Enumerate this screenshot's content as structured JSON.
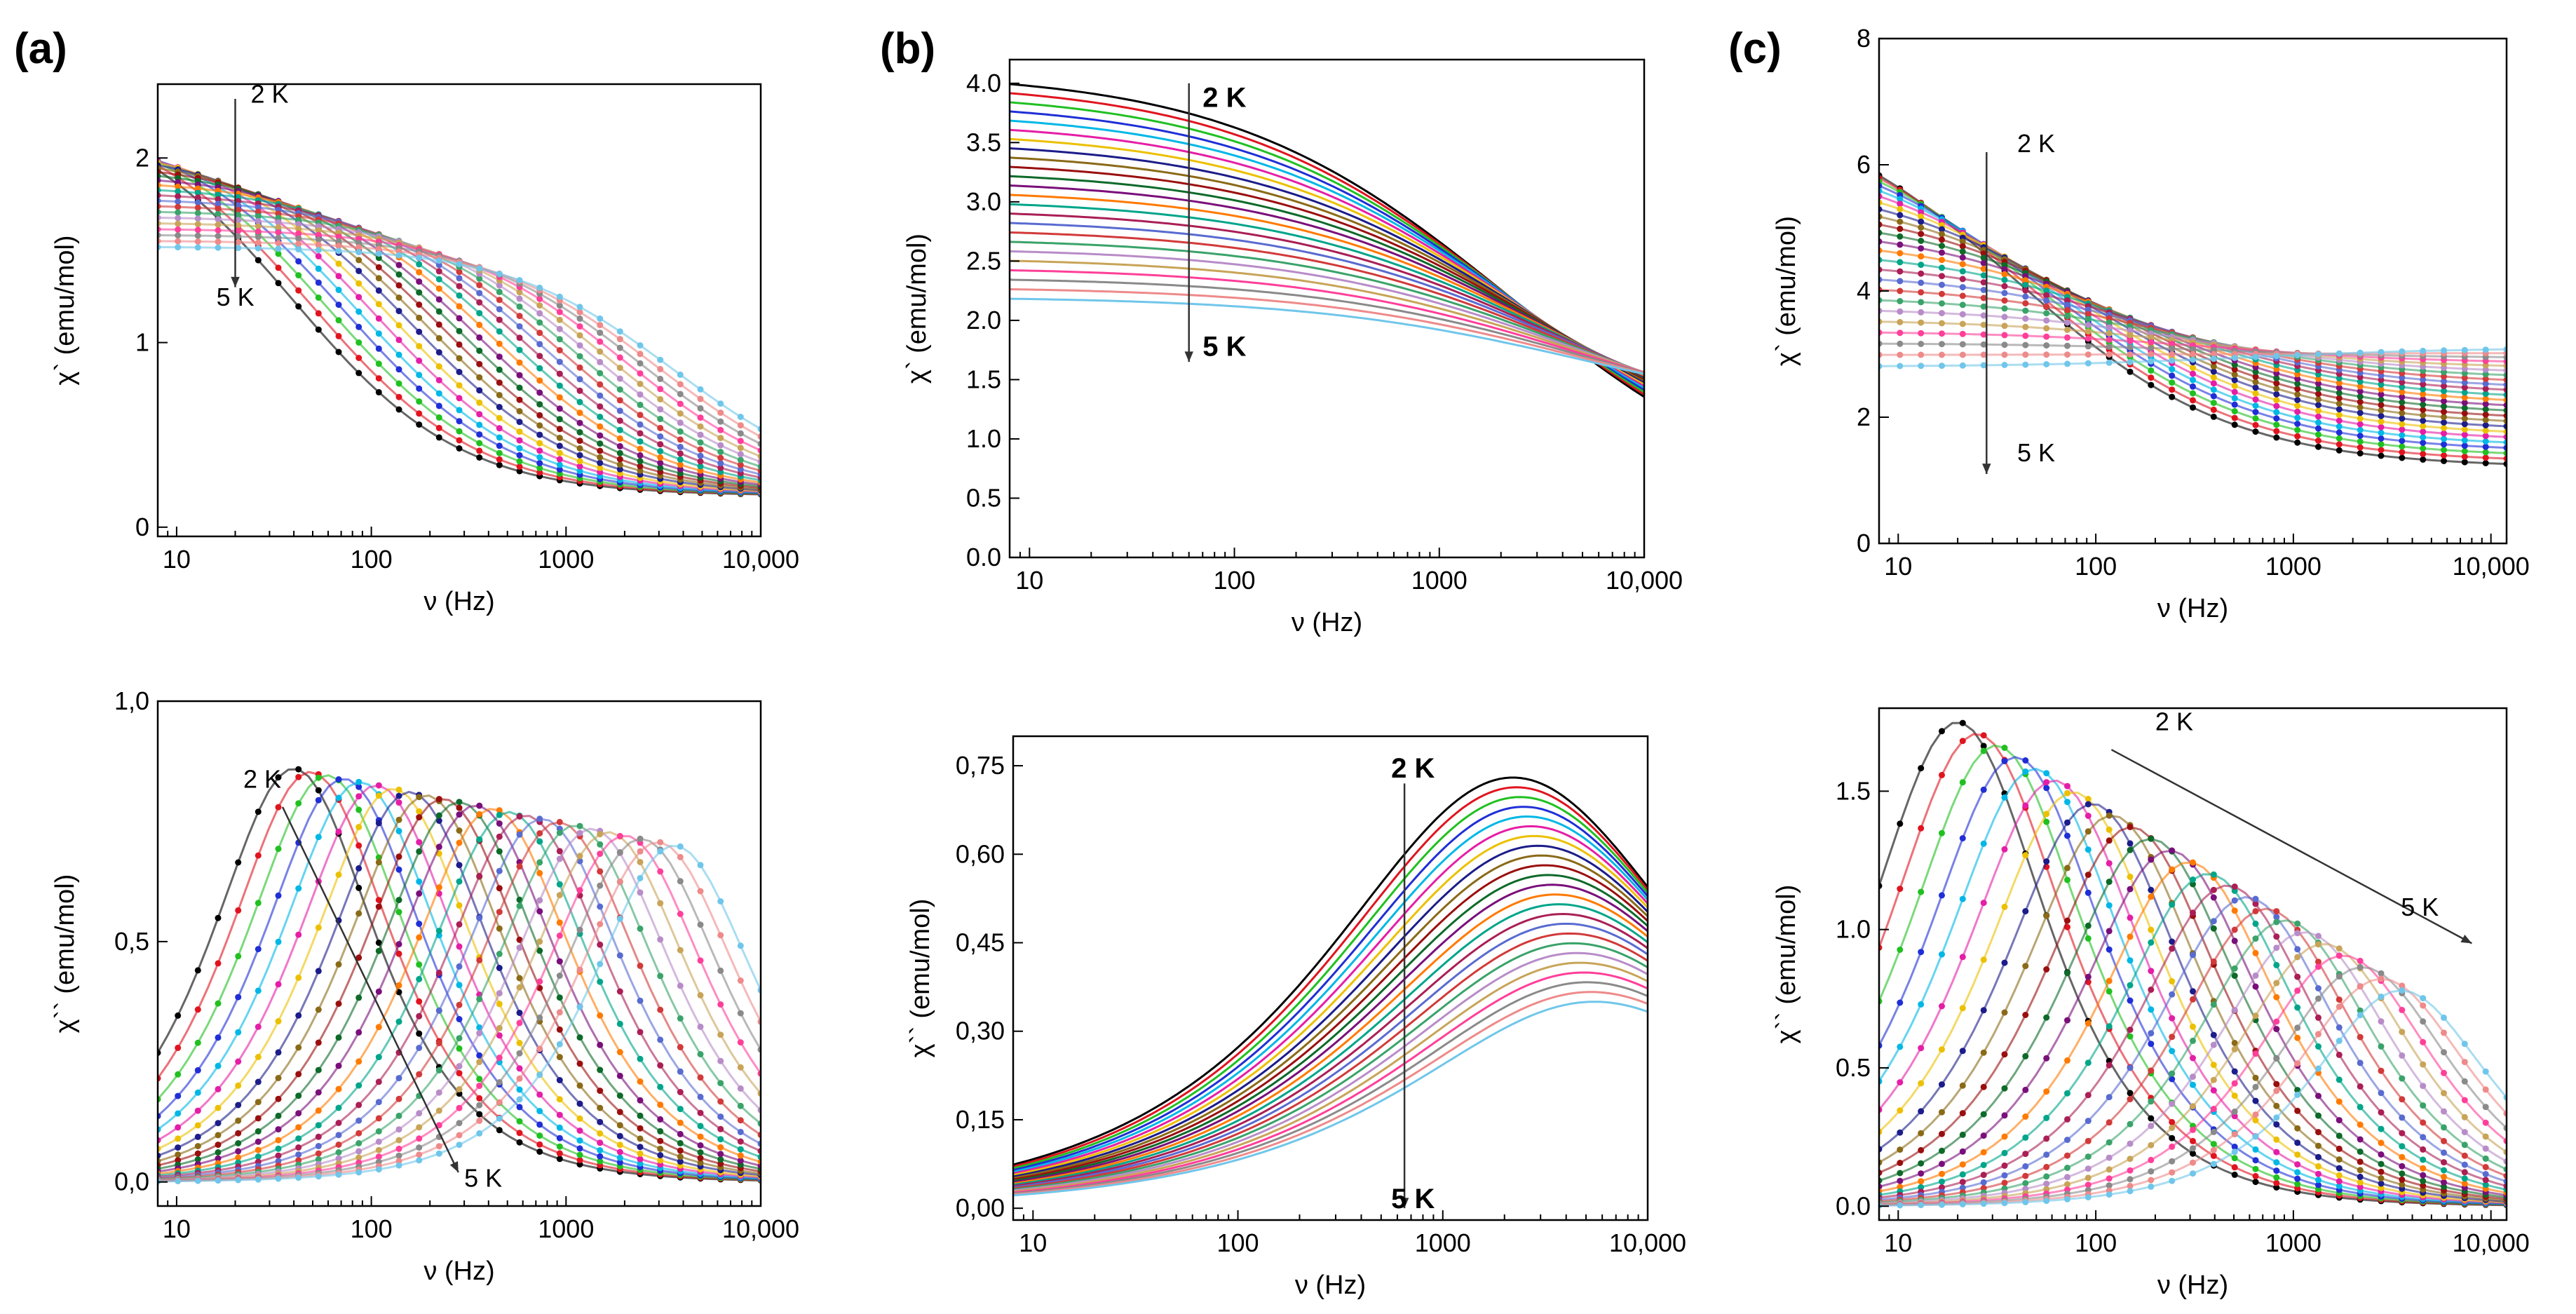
{
  "panel_labels": [
    "(a)",
    "(b)",
    "(c)"
  ],
  "palette": [
    "#000000",
    "#e0141f",
    "#21c021",
    "#1f2fd6",
    "#00b7e6",
    "#e51ea6",
    "#ecc000",
    "#1c1c8a",
    "#8a6a18",
    "#9a0f0f",
    "#0e6a2a",
    "#7a0f7a",
    "#ff7a00",
    "#00a58a",
    "#aa1f55",
    "#596bd0",
    "#d23a3a",
    "#3aa36a",
    "#b88cc8",
    "#c8a458",
    "#ff3f99",
    "#8a8a8a",
    "#ee8a8a",
    "#70c6ea"
  ],
  "chart_data": [
    {
      "id": "a-real",
      "panel": "a",
      "type": "line",
      "style": "dots",
      "title": "",
      "xlabel": "ν (Hz)",
      "ylabel": "χ` (emu/mol)",
      "xscale": "log",
      "xlim": [
        8,
        10000
      ],
      "ylim": [
        -0.05,
        2.4
      ],
      "xticks": [
        "10",
        "100",
        "1000",
        "10,000"
      ],
      "yticks": [
        "0",
        "1",
        "2"
      ],
      "yticks_values": [
        0,
        1,
        2
      ],
      "xticks_values": [
        10,
        100,
        1000,
        10000
      ],
      "annotations": [
        {
          "text": "2 K",
          "weight": "normal"
        },
        {
          "text": "5 K",
          "weight": "normal"
        }
      ],
      "arrow": {
        "from": [
          20,
          2.32
        ],
        "to": [
          20,
          1.3
        ]
      },
      "annotation_positions": [
        [
          24,
          2.3
        ],
        [
          16,
          1.2
        ]
      ],
      "series_count": 24,
      "curves": {
        "kind": "debye-real",
        "chi_s_range": [
          0.17,
          0.18
        ],
        "chi_t_range": [
          2.28,
          1.52
        ],
        "peak_freq_range": [
          40,
          3600
        ],
        "alpha": 0.12
      }
    },
    {
      "id": "b-real",
      "panel": "b",
      "type": "line",
      "style": "lines",
      "title": "",
      "xlabel": "ν (Hz)",
      "ylabel": "χ` (emu/mol)",
      "xscale": "log",
      "xlim": [
        8,
        10000
      ],
      "ylim": [
        0.0,
        4.2
      ],
      "xticks": [
        "10",
        "100",
        "1000",
        "10,000"
      ],
      "yticks": [
        "0.0",
        "0.5",
        "1.0",
        "1.5",
        "2.0",
        "2.5",
        "3.0",
        "3.5",
        "4.0"
      ],
      "yticks_values": [
        0,
        0.5,
        1,
        1.5,
        2,
        2.5,
        3,
        3.5,
        4
      ],
      "xticks_values": [
        10,
        100,
        1000,
        10000
      ],
      "annotations": [
        {
          "text": "2 K",
          "weight": "bold"
        },
        {
          "text": "5 K",
          "weight": "bold"
        }
      ],
      "arrow": {
        "from": [
          60,
          4.0
        ],
        "to": [
          60,
          1.65
        ]
      },
      "annotation_positions": [
        [
          70,
          3.8
        ],
        [
          70,
          1.7
        ]
      ],
      "series_count": 24,
      "curves": {
        "kind": "debye-real",
        "chi_s_range": [
          0.3,
          1.1
        ],
        "chi_t_range": [
          4.1,
          2.2
        ],
        "peak_freq_range": [
          2200,
          5500
        ],
        "alpha": 0.45
      }
    },
    {
      "id": "c-real",
      "panel": "c",
      "type": "line",
      "style": "dots",
      "title": "",
      "xlabel": "ν (Hz)",
      "ylabel": "χ` (emu/mol)",
      "xscale": "log",
      "xlim": [
        8,
        12000
      ],
      "ylim": [
        0,
        8
      ],
      "xticks": [
        "10",
        "100",
        "1000",
        "10,000"
      ],
      "yticks": [
        "0",
        "2",
        "4",
        "6",
        "8"
      ],
      "yticks_values": [
        0,
        2,
        4,
        6,
        8
      ],
      "xticks_values": [
        10,
        100,
        1000,
        10000
      ],
      "annotations": [
        {
          "text": "2 K",
          "weight": "normal"
        },
        {
          "text": "5 K",
          "weight": "normal"
        }
      ],
      "arrow": {
        "from": [
          28,
          6.2
        ],
        "to": [
          28,
          1.1
        ]
      },
      "annotation_positions": [
        [
          40,
          6.2
        ],
        [
          40,
          1.3
        ]
      ],
      "series_count": 24,
      "curves": {
        "kind": "debye-real",
        "chi_s_range": [
          1.2,
          3.1
        ],
        "chi_t_range": [
          7.1,
          2.8
        ],
        "peak_freq_range": [
          40,
          600
        ],
        "alpha": 0.3
      }
    },
    {
      "id": "a-imag",
      "panel": "a",
      "type": "line",
      "style": "dots",
      "title": "",
      "xlabel": "ν (Hz)",
      "ylabel": "χ`` (emu/mol)",
      "xscale": "log",
      "xlim": [
        8,
        10000
      ],
      "ylim": [
        -0.05,
        1.0
      ],
      "xticks": [
        "10",
        "100",
        "1000",
        "10,000"
      ],
      "yticks": [
        "0,0",
        "0,5",
        "1,0"
      ],
      "yticks_values": [
        0,
        0.5,
        1.0
      ],
      "xticks_values": [
        10,
        100,
        1000,
        10000
      ],
      "annotations": [
        {
          "text": "2 K",
          "weight": "normal"
        },
        {
          "text": "5 K",
          "weight": "normal"
        }
      ],
      "arrow": {
        "from": [
          35,
          0.78
        ],
        "to": [
          280,
          0.02
        ]
      },
      "annotation_positions": [
        [
          22,
          0.82
        ],
        [
          300,
          -0.01
        ]
      ],
      "series_count": 24,
      "curves": {
        "kind": "debye-imag",
        "amplitude_range": [
          0.86,
          0.7
        ],
        "peak_freq_range": [
          40,
          3600
        ],
        "width": 0.42
      }
    },
    {
      "id": "b-imag",
      "panel": "b",
      "type": "line",
      "style": "lines",
      "title": "",
      "xlabel": "ν (Hz)",
      "ylabel": "χ`` (emu/mol)",
      "xscale": "log",
      "xlim": [
        8,
        10000
      ],
      "ylim": [
        -0.02,
        0.8
      ],
      "xticks": [
        "10",
        "100",
        "1000",
        "10,000"
      ],
      "yticks": [
        "0,00",
        "0,15",
        "0,30",
        "0,45",
        "0,60",
        "0,75"
      ],
      "yticks_values": [
        0,
        0.15,
        0.3,
        0.45,
        0.6,
        0.75
      ],
      "xticks_values": [
        10,
        100,
        1000,
        10000
      ],
      "annotations": [
        {
          "text": "2 K",
          "weight": "bold"
        },
        {
          "text": "5 K",
          "weight": "bold"
        }
      ],
      "arrow": {
        "from": [
          650,
          0.72
        ],
        "to": [
          650,
          0.0
        ]
      },
      "annotation_positions": [
        [
          560,
          0.73
        ],
        [
          560,
          0.0
        ]
      ],
      "series_count": 24,
      "curves": {
        "kind": "debye-imag",
        "amplitude_range": [
          0.73,
          0.35
        ],
        "peak_freq_range": [
          2200,
          5500
        ],
        "width": 0.9
      }
    },
    {
      "id": "c-imag",
      "panel": "c",
      "type": "line",
      "style": "dots",
      "title": "",
      "xlabel": "ν (Hz)",
      "ylabel": "χ`` (emu/mol)",
      "xscale": "log",
      "xlim": [
        8,
        12000
      ],
      "ylim": [
        -0.05,
        1.8
      ],
      "xticks": [
        "10",
        "100",
        "1000",
        "10,000"
      ],
      "yticks": [
        "0.0",
        "0.5",
        "1.0",
        "1.5"
      ],
      "yticks_values": [
        0,
        0.5,
        1.0,
        1.5
      ],
      "xticks_values": [
        10,
        100,
        1000,
        10000
      ],
      "annotations": [
        {
          "text": "2 K",
          "weight": "normal"
        },
        {
          "text": "5 K",
          "weight": "normal"
        }
      ],
      "arrow": {
        "from": [
          120,
          1.65
        ],
        "to": [
          8000,
          0.95
        ]
      },
      "annotation_positions": [
        [
          200,
          1.72
        ],
        [
          3500,
          1.05
        ]
      ],
      "series_count": 24,
      "curves": {
        "kind": "debye-imag",
        "amplitude_range": [
          1.75,
          0.78
        ],
        "peak_freq_range": [
          20,
          3500
        ],
        "width": 0.45
      }
    }
  ]
}
